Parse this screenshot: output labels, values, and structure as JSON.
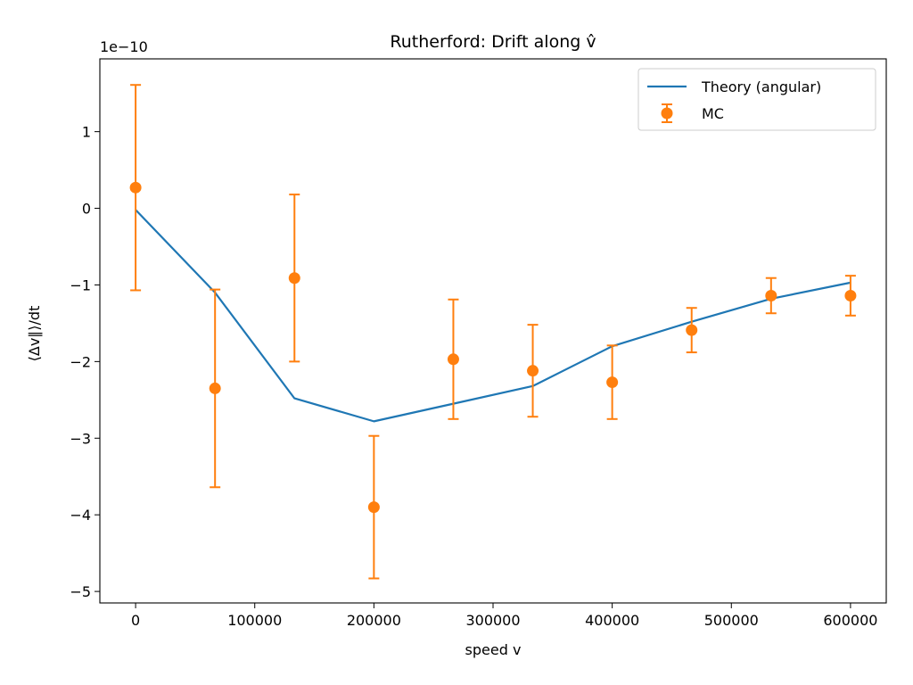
{
  "chart_data": {
    "type": "line",
    "title": "Rutherford: Drift along v̂",
    "xlabel": "speed v",
    "ylabel": "⟨Δv∥⟩/dt",
    "y_offset_label": "1e−10",
    "xlim": [
      -30000,
      630000
    ],
    "ylim": [
      -5.15,
      1.95
    ],
    "x_ticks": [
      0,
      100000,
      200000,
      300000,
      400000,
      500000,
      600000
    ],
    "x_tick_labels": [
      "0",
      "100000",
      "200000",
      "300000",
      "400000",
      "500000",
      "600000"
    ],
    "y_ticks": [
      1,
      0,
      -1,
      -2,
      -3,
      -4,
      -5
    ],
    "y_tick_labels": [
      "1",
      "0",
      "−1",
      "−2",
      "−3",
      "−4",
      "−5"
    ],
    "legend_position": "top-right",
    "grid": false,
    "series": [
      {
        "name": "Theory (angular)",
        "kind": "line",
        "color": "#1f77b4",
        "x": [
          0,
          66667,
          133333,
          200000,
          266667,
          333333,
          400000,
          466667,
          533333,
          600000
        ],
        "y": [
          -0.02,
          -1.1,
          -2.48,
          -2.78,
          -2.55,
          -2.32,
          -1.8,
          -1.48,
          -1.18,
          -0.97
        ]
      },
      {
        "name": "MC",
        "kind": "errorbar",
        "color": "#ff7f0e",
        "x": [
          0,
          66667,
          133333,
          200000,
          266667,
          333333,
          400000,
          466667,
          533333,
          600000
        ],
        "y": [
          0.27,
          -2.35,
          -0.91,
          -3.9,
          -1.97,
          -2.12,
          -2.27,
          -1.59,
          -1.14,
          -1.14
        ],
        "yerr": [
          1.34,
          1.29,
          1.09,
          0.93,
          0.78,
          0.6,
          0.48,
          0.29,
          0.23,
          0.26
        ]
      }
    ]
  }
}
